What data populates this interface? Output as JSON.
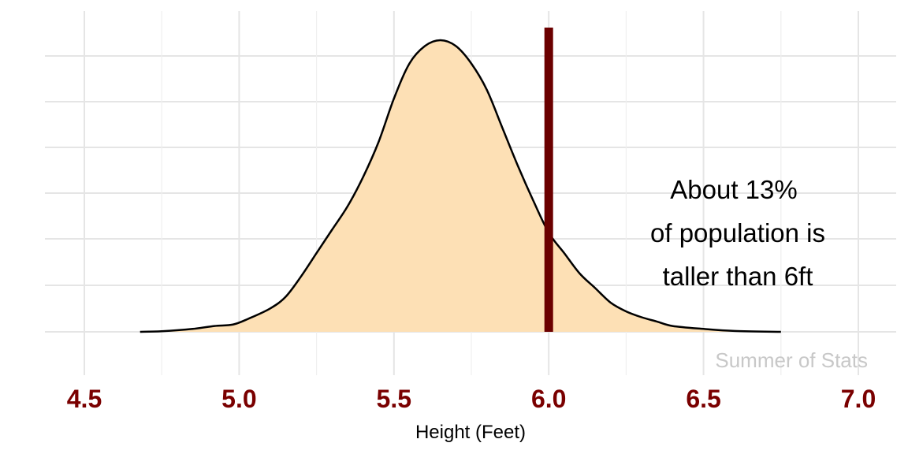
{
  "chart_data": {
    "type": "area",
    "xlabel": "Height (Feet)",
    "ylabel": "",
    "xlim": [
      4.5,
      7.0
    ],
    "x_ticks": [
      "4.5",
      "5.0",
      "5.5",
      "6.0",
      "6.5",
      "7.0"
    ],
    "grid": true,
    "y_tick_labels_shown": false,
    "series": [
      {
        "x": [
          4.68,
          4.75,
          4.85,
          4.92,
          4.98,
          5.03,
          5.1,
          5.15,
          5.2,
          5.25,
          5.3,
          5.35,
          5.4,
          5.45,
          5.5,
          5.55,
          5.6,
          5.65,
          5.7,
          5.75,
          5.8,
          5.85,
          5.9,
          5.95,
          6.0,
          6.05,
          6.1,
          6.15,
          6.2,
          6.25,
          6.3,
          6.35,
          6.4,
          6.5,
          6.6,
          6.75
        ],
        "y": [
          0.0,
          0.002,
          0.01,
          0.02,
          0.025,
          0.045,
          0.08,
          0.12,
          0.19,
          0.27,
          0.35,
          0.43,
          0.53,
          0.65,
          0.8,
          0.92,
          0.98,
          1.0,
          0.98,
          0.92,
          0.83,
          0.7,
          0.57,
          0.45,
          0.34,
          0.27,
          0.2,
          0.15,
          0.1,
          0.07,
          0.05,
          0.035,
          0.02,
          0.01,
          0.003,
          0.0
        ]
      }
    ],
    "reference_line": {
      "x": 6.0
    },
    "annotation": [
      "About 13%",
      "of population is",
      "taller than 6ft"
    ],
    "watermark": "Summer of Stats",
    "colors": {
      "fill": "#fde0b5",
      "outline": "#000000",
      "reference_line": "#6b0000",
      "tick_labels": "#7a0000",
      "watermark": "#c8c8c8"
    }
  }
}
